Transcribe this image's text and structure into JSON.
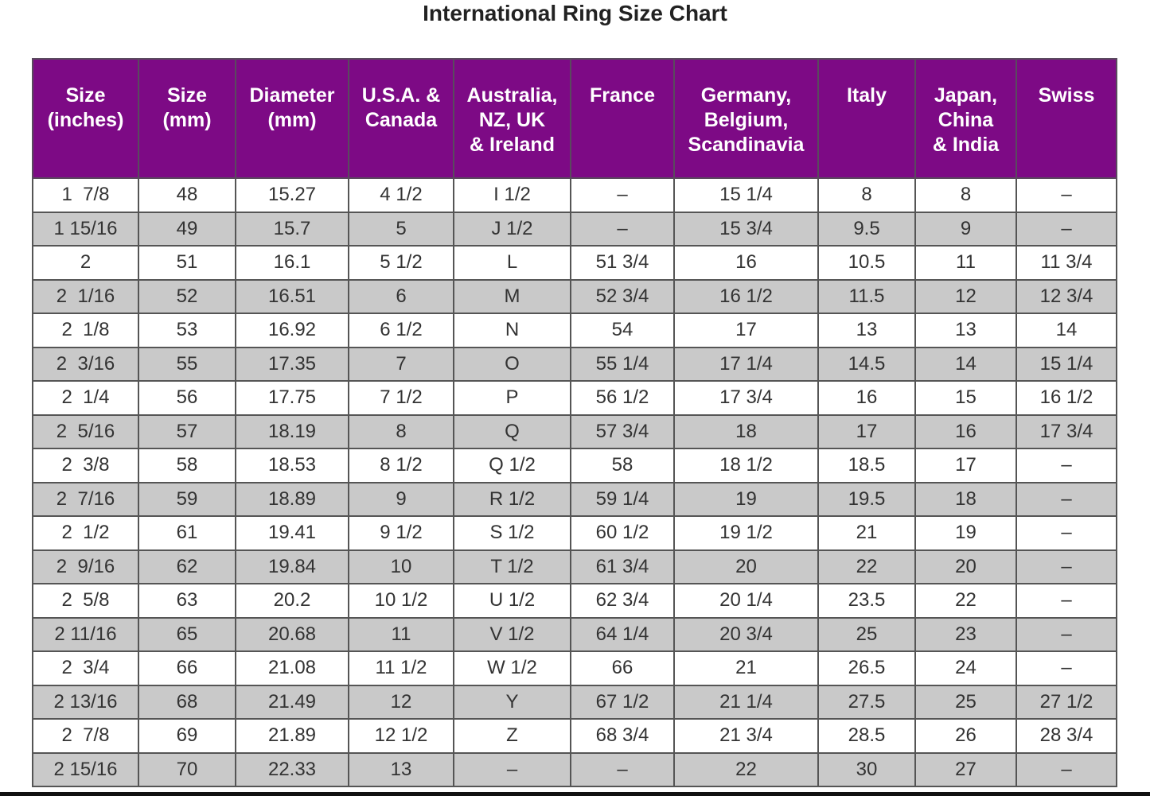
{
  "title": "International Ring Size Chart",
  "table": {
    "headers": [
      "Size\n(inches)",
      "Size\n(mm)",
      "Diameter\n(mm)",
      "U.S.A. &\nCanada",
      "Australia,\nNZ, UK\n& Ireland",
      "France",
      "Germany,\nBelgium,\nScandinavia",
      "Italy",
      "Japan,\nChina\n& India",
      "Swiss"
    ],
    "rows": [
      [
        "1  7/8",
        "48",
        "15.27",
        "4 1/2",
        "I 1/2",
        "–",
        "15 1/4",
        "8",
        "8",
        "–"
      ],
      [
        "1 15/16",
        "49",
        "15.7",
        "5",
        "J 1/2",
        "–",
        "15 3/4",
        "9.5",
        "9",
        "–"
      ],
      [
        "2",
        "51",
        "16.1",
        "5 1/2",
        "L",
        "51 3/4",
        "16",
        "10.5",
        "11",
        "11 3/4"
      ],
      [
        "2  1/16",
        "52",
        "16.51",
        "6",
        "M",
        "52 3/4",
        "16 1/2",
        "11.5",
        "12",
        "12 3/4"
      ],
      [
        "2  1/8",
        "53",
        "16.92",
        "6 1/2",
        "N",
        "54",
        "17",
        "13",
        "13",
        "14"
      ],
      [
        "2  3/16",
        "55",
        "17.35",
        "7",
        "O",
        "55 1/4",
        "17 1/4",
        "14.5",
        "14",
        "15 1/4"
      ],
      [
        "2  1/4",
        "56",
        "17.75",
        "7 1/2",
        "P",
        "56 1/2",
        "17 3/4",
        "16",
        "15",
        "16 1/2"
      ],
      [
        "2  5/16",
        "57",
        "18.19",
        "8",
        "Q",
        "57 3/4",
        "18",
        "17",
        "16",
        "17 3/4"
      ],
      [
        "2  3/8",
        "58",
        "18.53",
        "8 1/2",
        "Q 1/2",
        "58",
        "18 1/2",
        "18.5",
        "17",
        "–"
      ],
      [
        "2  7/16",
        "59",
        "18.89",
        "9",
        "R 1/2",
        "59 1/4",
        "19",
        "19.5",
        "18",
        "–"
      ],
      [
        "2  1/2",
        "61",
        "19.41",
        "9 1/2",
        "S 1/2",
        "60 1/2",
        "19 1/2",
        "21",
        "19",
        "–"
      ],
      [
        "2  9/16",
        "62",
        "19.84",
        "10",
        "T 1/2",
        "61 3/4",
        "20",
        "22",
        "20",
        "–"
      ],
      [
        "2  5/8",
        "63",
        "20.2",
        "10 1/2",
        "U 1/2",
        "62 3/4",
        "20 1/4",
        "23.5",
        "22",
        "–"
      ],
      [
        "2 11/16",
        "65",
        "20.68",
        "11",
        "V 1/2",
        "64 1/4",
        "20 3/4",
        "25",
        "23",
        "–"
      ],
      [
        "2  3/4",
        "66",
        "21.08",
        "11 1/2",
        "W 1/2",
        "66",
        "21",
        "26.5",
        "24",
        "–"
      ],
      [
        "2 13/16",
        "68",
        "21.49",
        "12",
        "Y",
        "67 1/2",
        "21 1/4",
        "27.5",
        "25",
        "27 1/2"
      ],
      [
        "2  7/8",
        "69",
        "21.89",
        "12 1/2",
        "Z",
        "68 3/4",
        "21 3/4",
        "28.5",
        "26",
        "28 3/4"
      ],
      [
        "2 15/16",
        "70",
        "22.33",
        "13",
        "–",
        "–",
        "22",
        "30",
        "27",
        "–"
      ]
    ]
  }
}
